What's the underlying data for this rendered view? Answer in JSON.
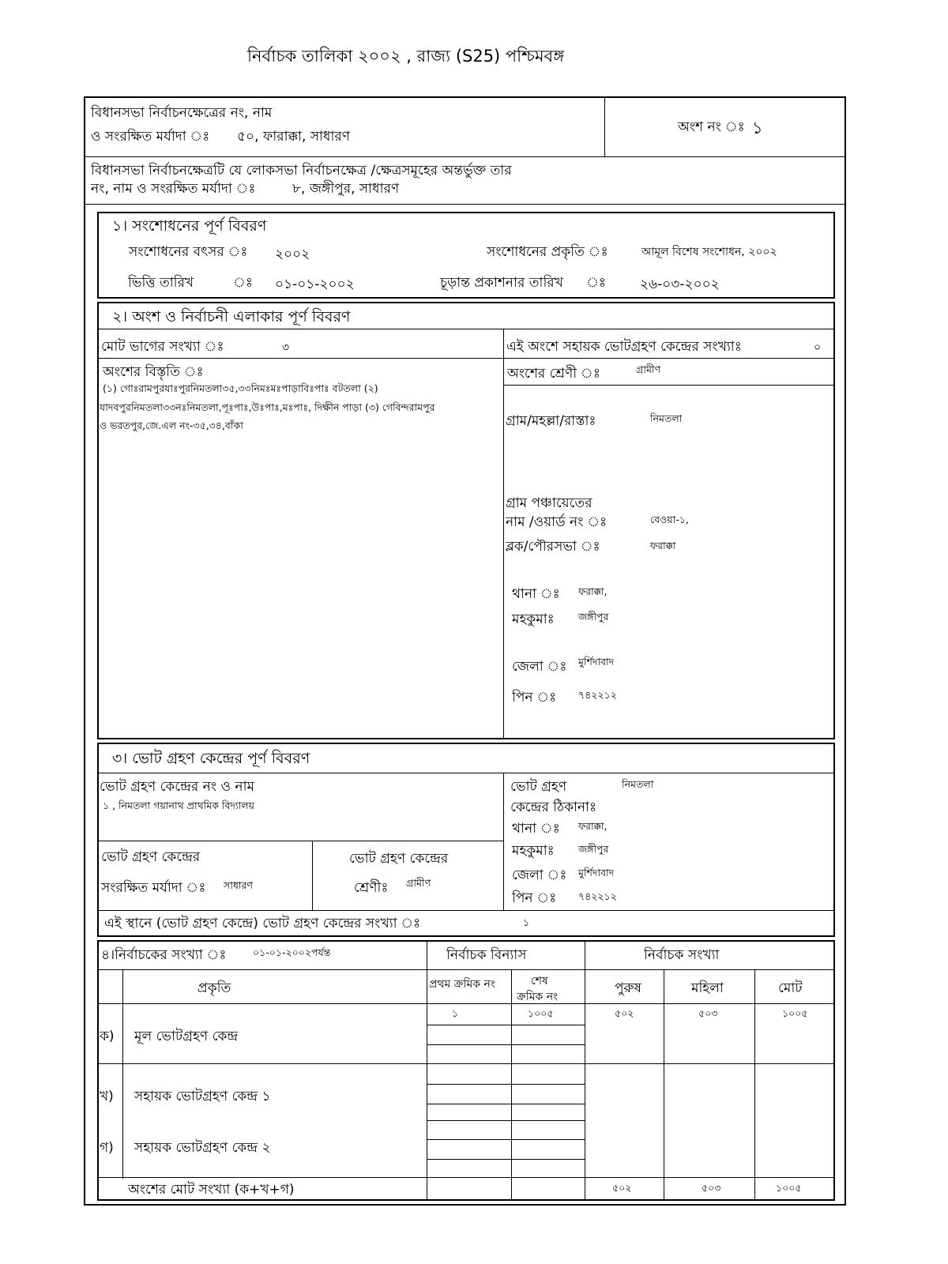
{
  "title": "নির্বাচক তালিকা   ২০০২ , রাজ্য (S25) পশ্চিমবঙ্গ",
  "header": {
    "ac_label_1": "বিধানসভা নির্বাচনক্ষেত্রের নং, নাম",
    "ac_label_2": "ও সংরক্ষিত মর্যাদা ঃ",
    "ac_value": "৫০, ফারাক্কা, সাধারণ",
    "part_label": "অংশ নং ঃ",
    "part_value": "১",
    "pc_label_1": "বিধানসভা নির্বাচনক্ষেত্রটি যে লোকসভা নির্বাচনক্ষেত্র /ক্ষেত্রসমূহের অন্তর্ভুক্ত তার",
    "pc_label_2": "নং, নাম  ও সংরক্ষিত মর্যাদা ঃ",
    "pc_value": "৮, জঙ্গীপুর, সাধারণ"
  },
  "section1": {
    "heading": "১। সংশোধনের পূর্ণ বিবরণ",
    "year_label": "সংশোধনের বৎসর ঃ",
    "year_value": "২০০২",
    "nature_label": "সংশোধনের প্রকৃতি ঃ",
    "nature_value": "আমূল বিশেষ সংশোধন, ২০০২",
    "base_date_label": "ভিত্তি তারিখ",
    "base_date_value": "০১-০১-২০০২",
    "final_pub_label": "চূড়ান্ত প্রকাশনার তারিখ",
    "final_pub_value": "২৬-০৩-২০০২",
    "colon": "ঃ"
  },
  "section2": {
    "heading": "২। অংশ ও নির্বাচনী এলাকার পূর্ণ বিবরণ",
    "sections_label": "মোট ভাগের সংখ্যা ঃ",
    "sections_value": "৩",
    "aux_label": "এই অংশে সহায়ক ভোটগ্রহণ কেন্দ্রের সংখ্যাঃ",
    "aux_value": "০",
    "extent_label": "অংশের বিস্তৃতি  ঃ",
    "extent_lines": [
      "(১) গোঃরামপুরযাঃপুরনিমতলা৩৫,৩৩নিমঃমঃপাড়াবিঃপাঃ বটতলা  (২)",
      "যাদবপুরনিমতলা৩৩নঃনিমতলা,পূঃপাঃ,উঃপাঃ,মঃপাঃ, দিক্ষীন পাড়া  (৩) গেবিন্দরামপুর",
      "ও ভরতপুর,জে.এল নং-৩৫,৩৪,বাঁকা"
    ],
    "category_label": "অংশের শ্রেণী ঃ",
    "category_value": "গ্রামীণ",
    "village_label": "গ্রাম/মহল্লা/রাস্তাঃ",
    "village_value": "নিমতলা",
    "gp_label_1": "গ্রাম পঞ্চায়েতের",
    "gp_label_2": "নাম /ওয়ার্ড নং  ঃ",
    "gp_value": "বেওয়া-১,",
    "block_label": "ব্লক/পৌরসভা   ঃ",
    "block_value": "ফরাক্কা",
    "thana_label": "থানা  ঃ",
    "thana_value": "ফরাক্কা,",
    "subdiv_label": "মহকুমাঃ",
    "subdiv_value": "জঙ্গীপুর",
    "district_label": "জেলা  ঃ",
    "district_value": "মুর্শিদাবাদ",
    "pin_label": "পিন   ঃ",
    "pin_value": "৭৪২২১২"
  },
  "section3": {
    "heading": "৩। ভোট গ্রহণ কেন্দ্রের পূর্ণ বিবরণ",
    "ps_label": "ভোট গ্রহণ কেন্দ্রের নং ও নাম",
    "ps_value": "১ , নিমতলা গয়ানাথ প্রাথমিক বিদ্যালয়",
    "addr_label_1": "ভোট গ্রহণ",
    "addr_label_2": "কেন্দ্রের ঠিকানাঃ",
    "addr_value": "নিমতলা",
    "thana_label": "থানা  ঃ",
    "thana_value": "ফরাক্কা,",
    "subdiv_label": "মহকুমাঃ",
    "subdiv_value": "জঙ্গীপুর",
    "district_label": "জেলা  ঃ",
    "district_value": "মুর্শিদাবাদ",
    "pin_label": "পিন   ঃ",
    "pin_value": "৭৪২২১২",
    "res_label_1": "ভোট গ্রহণ কেন্দ্রের",
    "res_label_2": "সংরক্ষিত মর্যাদা ঃ",
    "res_value": "সাধারণ",
    "cat_label_1": "ভোট গ্রহণ কেন্দ্রের",
    "cat_label_2": "শ্রেণীঃ",
    "cat_value": "গ্রামীণ",
    "count_label": "এই স্থানে (ভোট গ্রহণ কেন্দ্রে) ভোট গ্রহণ কেন্দ্রের সংখ্যা ঃ",
    "count_value": "১"
  },
  "section4": {
    "heading": "৪।নির্বাচকের সংখ্যা ঃ",
    "as_of": "০১-০১-২০০২পর্যন্ত",
    "layout_header": "নির্বাচক বিন্যাস",
    "count_header": "নির্বাচক সংখ্যা",
    "col_nature": "প্রকৃতি",
    "col_first": "প্রথম ক্রমিক নং",
    "col_last_1": "শেষ",
    "col_last_2": "ক্রমিক নং",
    "col_male": "পুরুষ",
    "col_female": "মহিলা",
    "col_total": "মোট",
    "rows": [
      {
        "mark": "ক)",
        "label": "মূল ভোটগ্রহণ কেন্দ্র",
        "first": "১",
        "last": "১০০৫",
        "male": "৫০২",
        "female": "৫০৩",
        "total": "১০০৫"
      },
      {
        "mark": "খ)",
        "label": "সহায়ক ভোটগ্রহণ কেন্দ্র ১"
      },
      {
        "mark": "গ)",
        "label": "সহায়ক ভোটগ্রহণ কেন্দ্র ২"
      }
    ],
    "total_label": "অংশের মোট সংখ্যা (ক+খ+গ)",
    "total_male": "৫০২",
    "total_female": "৫০৩",
    "total_total": "১০০৫"
  }
}
